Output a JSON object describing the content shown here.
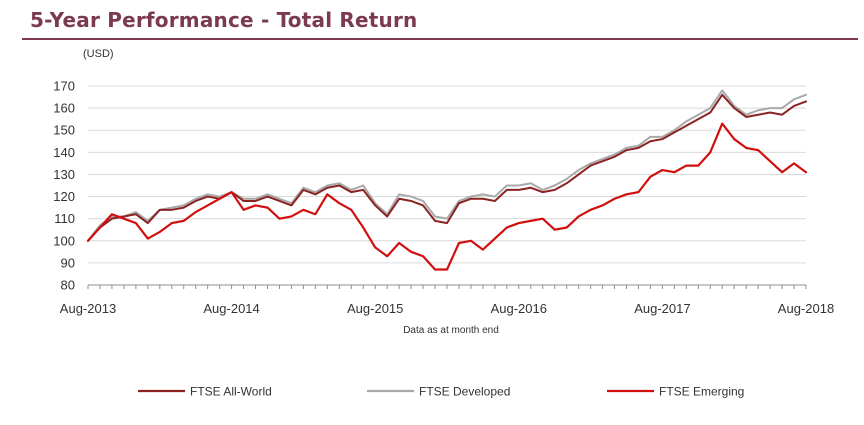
{
  "title": "5-Year Performance - Total Return",
  "colors": {
    "title": "#7b3a4e",
    "all_world": "#8b2323",
    "developed": "#a9a9a9",
    "emerging": "#d10f0f",
    "grid": "#d9d9d9"
  },
  "chart_data": {
    "type": "line",
    "title": "5-Year Performance - Total Return",
    "unit_label": "(USD)",
    "xlabel": "Data as at month end",
    "ylabel": "",
    "ylim": [
      80,
      170
    ],
    "yticks": [
      80,
      90,
      100,
      110,
      120,
      130,
      140,
      150,
      160,
      170
    ],
    "xticks": [
      "Aug-2013",
      "Aug-2014",
      "Aug-2015",
      "Aug-2016",
      "Aug-2017",
      "Aug-2018"
    ],
    "grid": true,
    "legend_position": "bottom",
    "x_start": "Aug-2013",
    "x_end": "Aug-2018",
    "series": [
      {
        "name": "FTSE All-World",
        "color": "#8b2323",
        "values": [
          100,
          106,
          110,
          111,
          112,
          108,
          114,
          114,
          115,
          118,
          120,
          119,
          122,
          118,
          118,
          120,
          118,
          116,
          123,
          121,
          124,
          125,
          122,
          123,
          116,
          111,
          119,
          118,
          116,
          109,
          108,
          117,
          119,
          119,
          118,
          123,
          123,
          124,
          122,
          123,
          126,
          130,
          134,
          136,
          138,
          141,
          142,
          145,
          146,
          149,
          152,
          155,
          158,
          166,
          160,
          156,
          157,
          158,
          157,
          161,
          163
        ]
      },
      {
        "name": "FTSE Developed",
        "color": "#a9a9a9",
        "values": [
          100,
          107,
          111,
          111,
          113,
          109,
          114,
          115,
          116,
          119,
          121,
          120,
          122,
          119,
          119,
          121,
          119,
          117,
          124,
          122,
          125,
          126,
          123,
          125,
          117,
          112,
          121,
          120,
          118,
          111,
          110,
          118,
          120,
          121,
          120,
          125,
          125,
          126,
          123,
          125,
          128,
          132,
          135,
          137,
          139,
          142,
          143,
          147,
          147,
          150,
          154,
          157,
          160,
          168,
          161,
          157,
          159,
          160,
          160,
          164,
          166
        ]
      },
      {
        "name": "FTSE Emerging",
        "color": "#d10f0f",
        "values": [
          100,
          106,
          112,
          110,
          108,
          101,
          104,
          108,
          109,
          113,
          116,
          119,
          122,
          114,
          116,
          115,
          110,
          111,
          114,
          112,
          121,
          117,
          114,
          106,
          97,
          93,
          99,
          95,
          93,
          87,
          87,
          99,
          100,
          96,
          101,
          106,
          108,
          109,
          110,
          105,
          106,
          111,
          114,
          116,
          119,
          121,
          122,
          129,
          132,
          131,
          134,
          134,
          140,
          153,
          146,
          142,
          141,
          136,
          131,
          135,
          131
        ]
      }
    ]
  }
}
